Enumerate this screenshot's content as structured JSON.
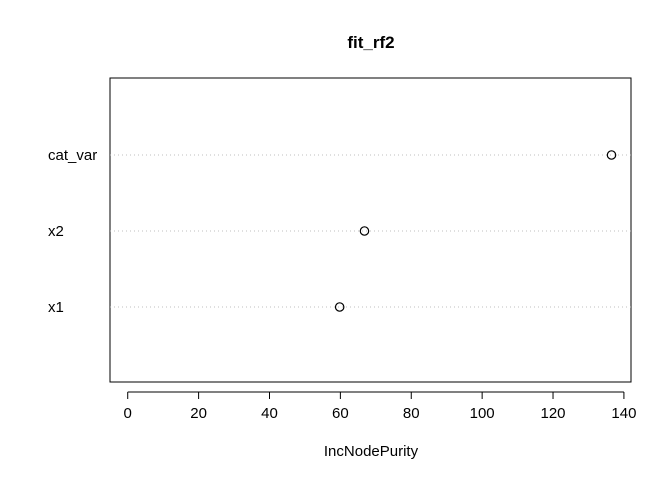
{
  "chart_data": {
    "type": "scatter",
    "subtype": "dotchart",
    "title": "fit_rf2",
    "xlabel": "IncNodePurity",
    "ylabel": "",
    "xlim": [
      -5,
      142
    ],
    "x_ticks": [
      0,
      20,
      40,
      60,
      80,
      100,
      120,
      140
    ],
    "categories": [
      "cat_var",
      "x2",
      "x1"
    ],
    "values": [
      136.5,
      66.8,
      59.8
    ],
    "grid": false,
    "legend": "none",
    "point_shape": "open-circle",
    "colors": {
      "axis": "#000000",
      "guide": "#bfbfbf",
      "point": "#000000"
    }
  }
}
